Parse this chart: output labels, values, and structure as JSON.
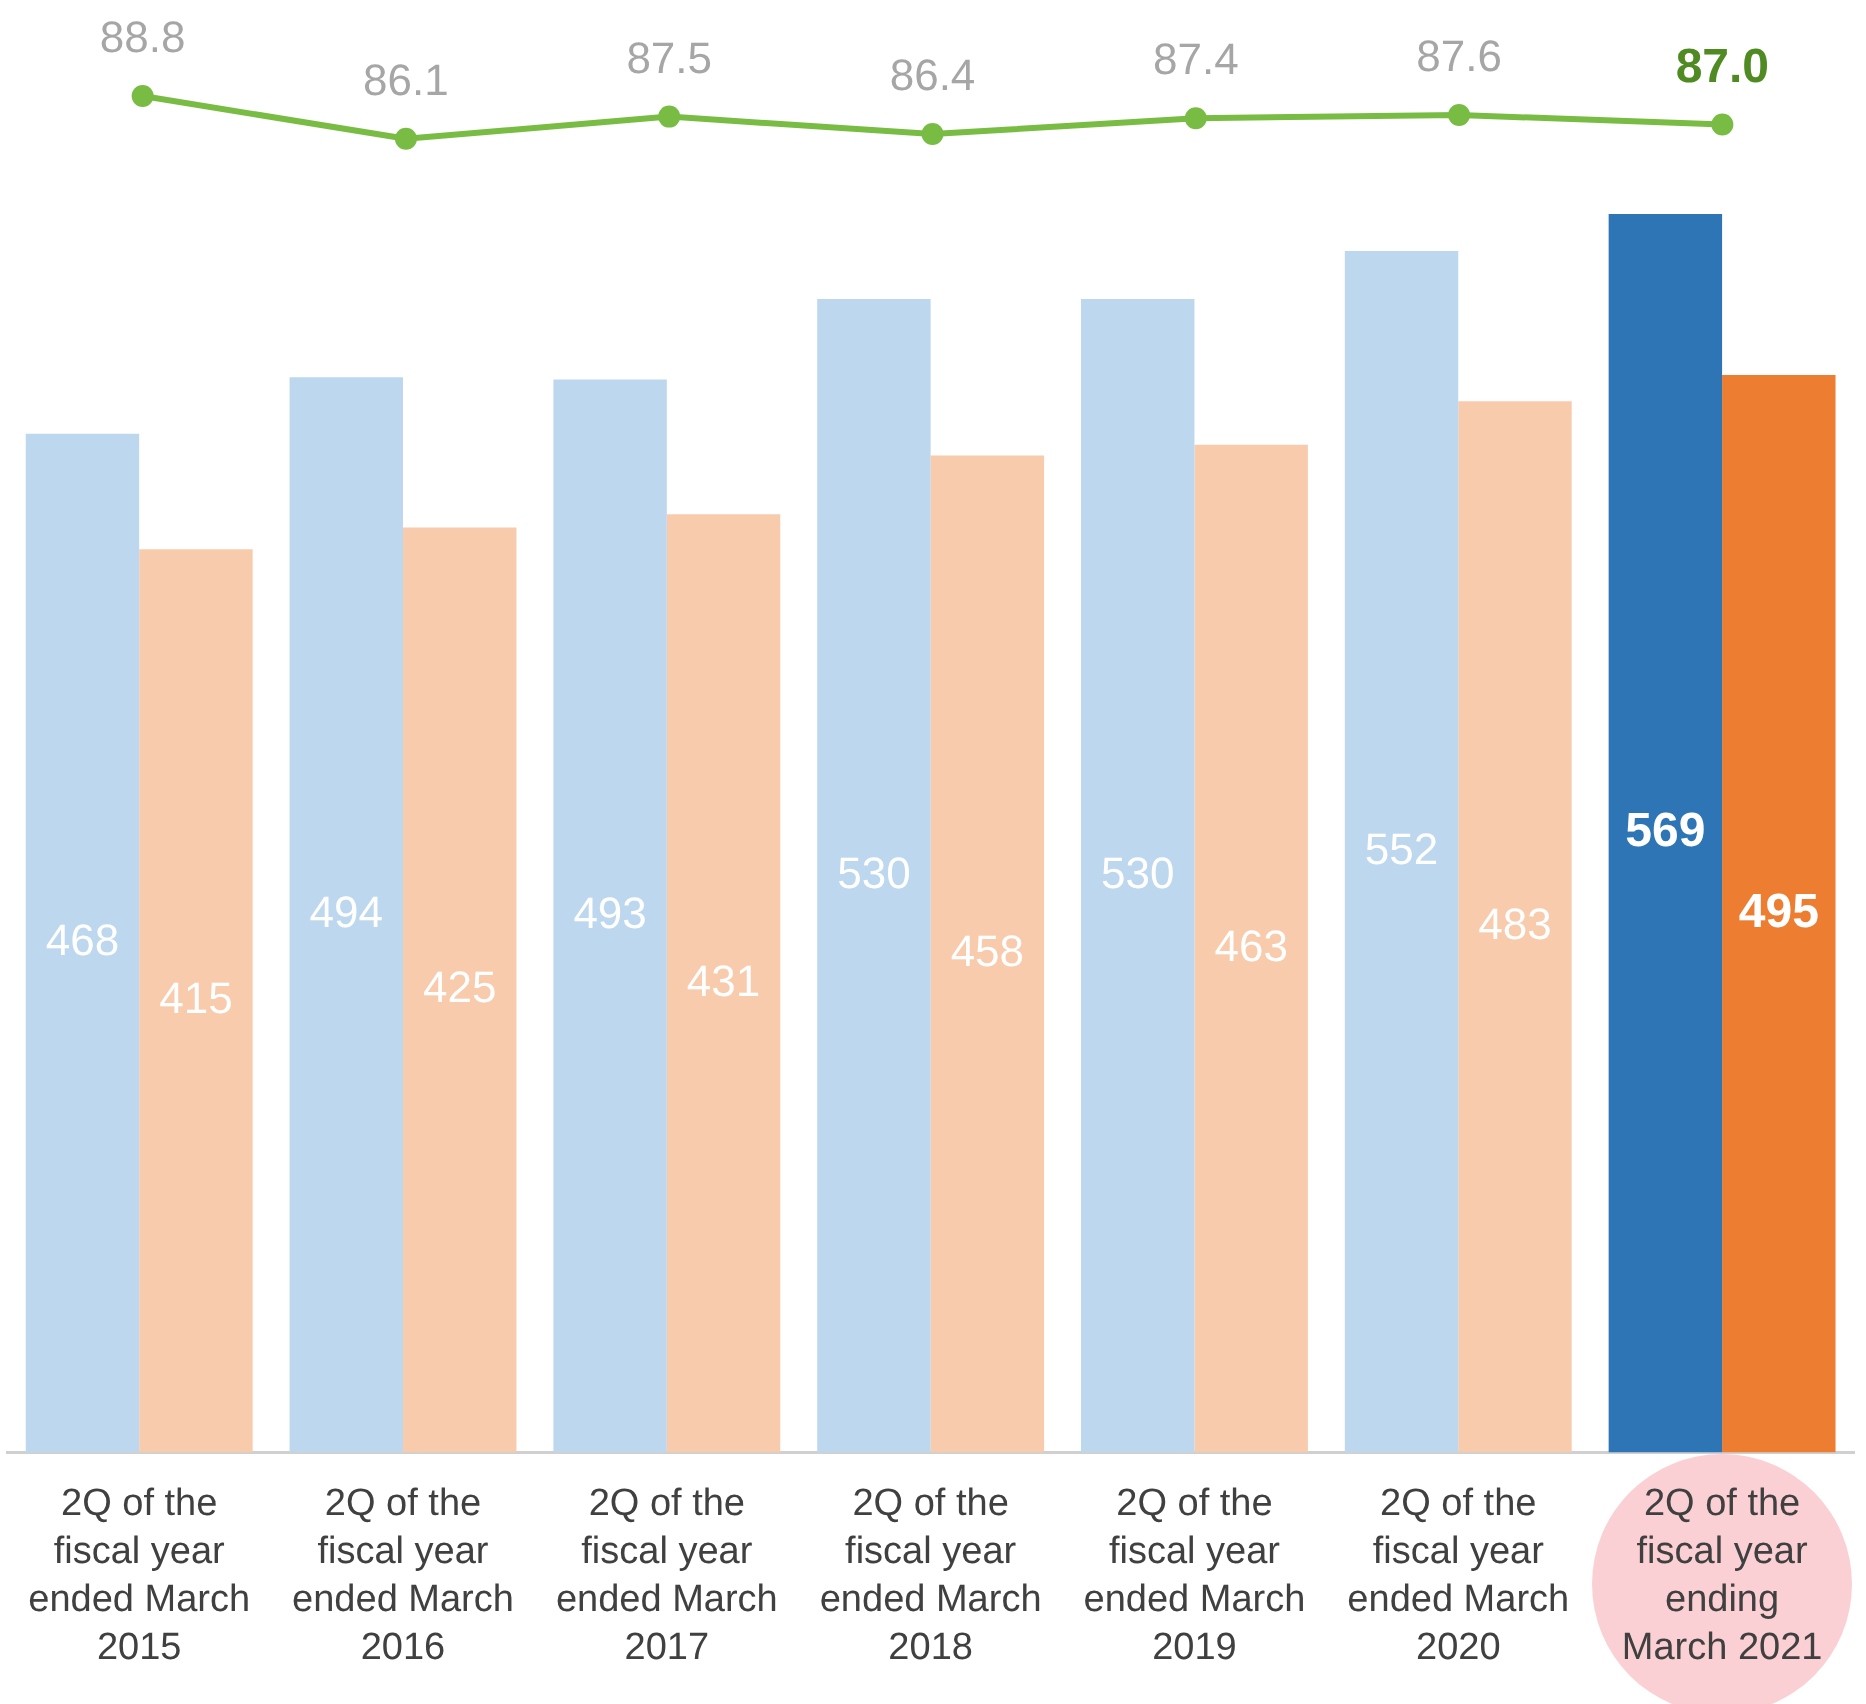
{
  "chart_data": [
    {
      "type": "line",
      "categories": [
        null,
        null,
        null,
        null,
        null,
        null,
        null
      ],
      "series": [
        {
          "color": "#78bc44",
          "values": [
            88.8,
            86.1,
            87.5,
            86.4,
            87.4,
            87.6,
            87.0
          ],
          "value_labels": [
            "88.8",
            "86.1",
            "87.5",
            "86.4",
            "87.4",
            "87.6",
            "87.0"
          ]
        }
      ],
      "tick_labels": false,
      "marker": "circle",
      "line_style": "solid"
    },
    {
      "type": "bar",
      "categories": [
        "2Q of the fiscal year ended March 2015",
        "2Q of the fiscal year ended March 2016",
        "2Q of the fiscal year ended March 2017",
        "2Q of the fiscal year ended March 2018",
        "2Q of the fiscal year ended March 2019",
        "2Q of the fiscal year ended March 2020",
        "2Q of the fiscal year ending March 2021"
      ],
      "series": [
        {
          "colors": [
            "#bdd7ee",
            "#bdd7ee",
            "#bdd7ee",
            "#bdd7ee",
            "#bdd7ee",
            "#bdd7ee",
            "#2e75b6"
          ],
          "values": [
            468,
            494,
            493,
            530,
            530,
            552,
            569
          ],
          "value_labels": [
            "468",
            "494",
            "493",
            "530",
            "530",
            "552",
            "569"
          ]
        },
        {
          "colors": [
            "#f8cbad",
            "#f8cbad",
            "#f8cbad",
            "#f8cbad",
            "#f8cbad",
            "#f8cbad",
            "#ed7d31"
          ],
          "values": [
            415,
            425,
            431,
            458,
            463,
            483,
            495
          ],
          "value_labels": [
            "415",
            "425",
            "431",
            "458",
            "463",
            "483",
            "495"
          ]
        }
      ],
      "tick_labels": "x"
    }
  ]
}
